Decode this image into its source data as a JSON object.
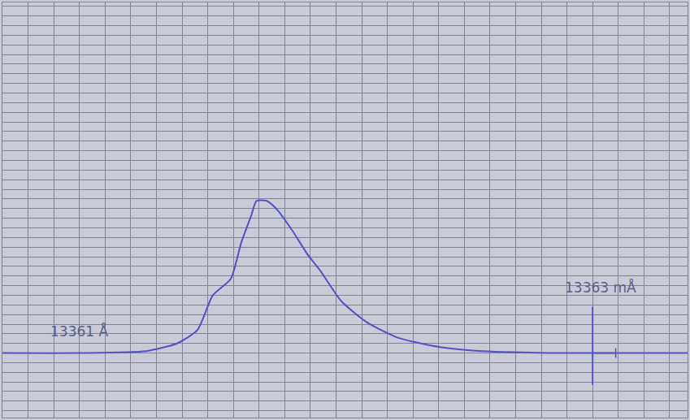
{
  "chart_data": {
    "type": "line",
    "color": "#5252c4",
    "grid": true,
    "tick_labels": false,
    "x": [
      13360.7,
      13361.0,
      13361.26,
      13361.38,
      13361.46,
      13361.52,
      13361.59,
      13361.63,
      13361.67,
      13361.69,
      13361.73,
      13361.77,
      13361.83,
      13361.89,
      13361.94,
      13362.02,
      13362.12,
      13362.24,
      13362.41,
      13362.57,
      13362.89,
      13363.0,
      13363.37
    ],
    "values": [
      0,
      0,
      0.2,
      1.0,
      2.4,
      6.0,
      7.7,
      11.4,
      14.3,
      15.8,
      15.8,
      14.9,
      12.7,
      10.2,
      8.5,
      5.4,
      3.2,
      1.6,
      0.6,
      0.2,
      0,
      0,
      0
    ],
    "xlim": [
      13360.7,
      13363.37
    ],
    "ylim": [
      -6.7,
      36.4
    ],
    "xticks": [
      13360.7,
      13360.8,
      13360.9,
      13361.0,
      13361.1,
      13361.2,
      13361.3,
      13361.4,
      13361.5,
      13361.6,
      13361.7,
      13361.8,
      13361.9,
      13362.0,
      13362.1,
      13362.2,
      13362.3,
      13362.4,
      13362.5,
      13362.6,
      13362.7,
      13362.8,
      13362.9,
      13363.0,
      13363.1,
      13363.2,
      13363.3
    ],
    "yticks": [
      -6,
      -5,
      -4,
      -3,
      -2,
      -1,
      0,
      1,
      2,
      3,
      4,
      5,
      6,
      7,
      8,
      9,
      10,
      11,
      12,
      13,
      14,
      15,
      16,
      17,
      18,
      19,
      20,
      21,
      22,
      23,
      24,
      25,
      26,
      27,
      28,
      29,
      30,
      31,
      32,
      33,
      34,
      35,
      36
    ],
    "annotations": [
      {
        "text": "13361 Å",
        "x": 13361.0,
        "y": 2.3
      },
      {
        "text": "13363 mÅ",
        "x": 13363.03,
        "y": 6.8
      }
    ],
    "reference_line": {
      "x": 13363.0,
      "y": [
        -3.3,
        4.8
      ]
    },
    "bracket": {
      "x": [
        13363.0,
        13363.09
      ],
      "y": 0
    }
  }
}
